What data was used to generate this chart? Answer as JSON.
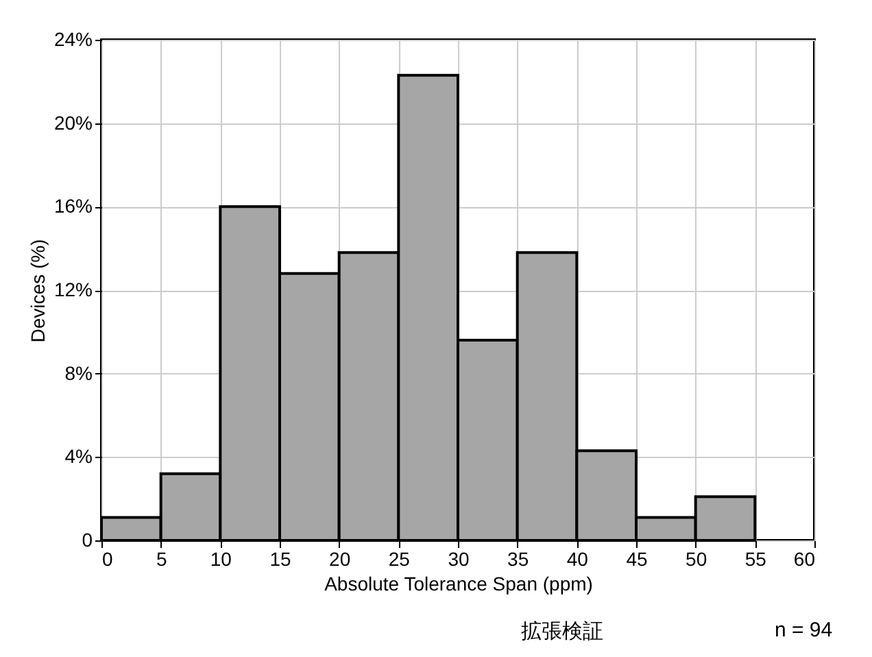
{
  "chart_data": {
    "type": "histogram",
    "xlabel": "Absolute Tolerance Span (ppm)",
    "ylabel": "Devices (%)",
    "bins": [
      0,
      5,
      10,
      15,
      20,
      25,
      30,
      35,
      40,
      45,
      50,
      55,
      60
    ],
    "values": [
      1.1,
      3.2,
      16.0,
      12.8,
      13.8,
      22.3,
      9.6,
      13.8,
      4.3,
      1.1,
      2.1,
      0
    ],
    "color": "#a6a6a6",
    "xlim": [
      0,
      60
    ],
    "xticks": [
      0,
      5,
      10,
      15,
      20,
      25,
      30,
      35,
      40,
      45,
      50,
      55,
      60
    ],
    "ylim": [
      0,
      24
    ],
    "yticks": [
      {
        "value": 0,
        "label": "0"
      },
      {
        "value": 4,
        "label": "4%"
      },
      {
        "value": 8,
        "label": "8%"
      },
      {
        "value": 12,
        "label": "12%"
      },
      {
        "value": 16,
        "label": "16%"
      },
      {
        "value": 20,
        "label": "20%"
      },
      {
        "value": 24,
        "label": "24%"
      }
    ],
    "grid": true,
    "annotations": [
      "拡張検証",
      "n = 94"
    ]
  }
}
